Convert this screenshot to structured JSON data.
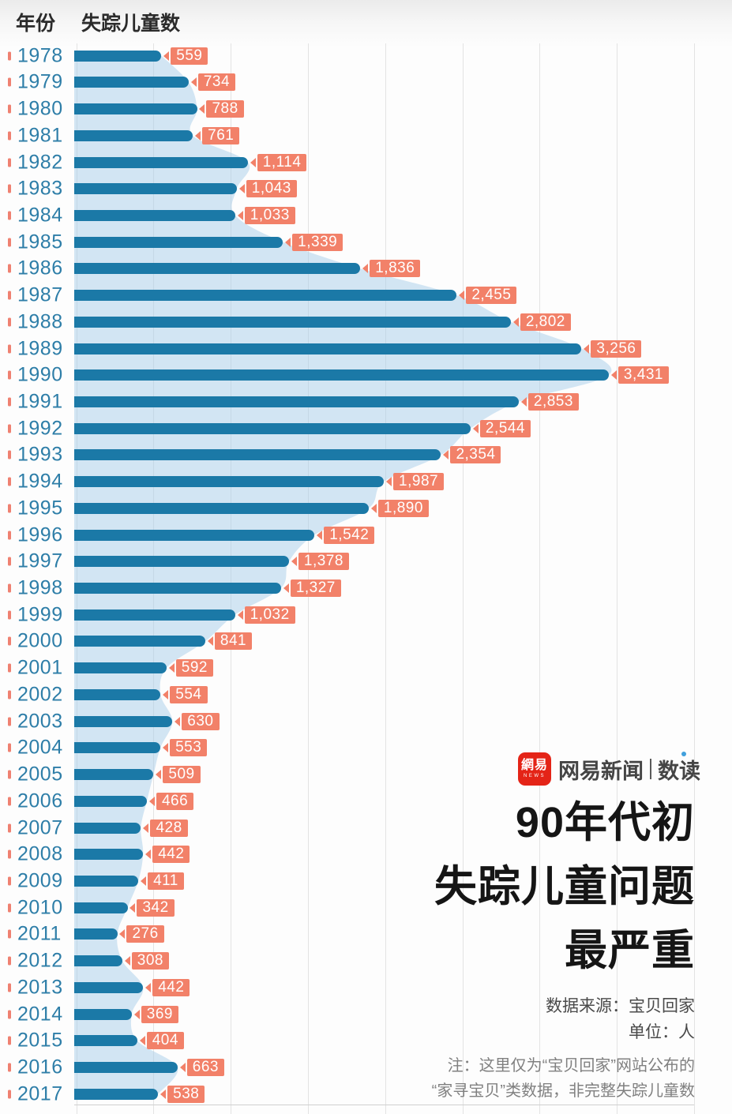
{
  "header": {
    "year_col": "年份",
    "count_col": "失踪儿童数"
  },
  "chart_data": {
    "type": "bar",
    "orientation": "horizontal",
    "title": "90年代初失踪儿童问题最严重",
    "xlabel": "失踪儿童数",
    "ylabel": "年份",
    "xlim": [
      0,
      4000
    ],
    "gridline_interval": 500,
    "grid": true,
    "categories": [
      "1978",
      "1979",
      "1980",
      "1981",
      "1982",
      "1983",
      "1984",
      "1985",
      "1986",
      "1987",
      "1988",
      "1989",
      "1990",
      "1991",
      "1992",
      "1993",
      "1994",
      "1995",
      "1996",
      "1997",
      "1998",
      "1999",
      "2000",
      "2001",
      "2002",
      "2003",
      "2004",
      "2005",
      "2006",
      "2007",
      "2008",
      "2009",
      "2010",
      "2011",
      "2012",
      "2013",
      "2014",
      "2015",
      "2016",
      "2017"
    ],
    "values": [
      559,
      734,
      788,
      761,
      1114,
      1043,
      1033,
      1339,
      1836,
      2455,
      2802,
      3256,
      3431,
      2853,
      2544,
      2354,
      1987,
      1890,
      1542,
      1378,
      1327,
      1032,
      841,
      592,
      554,
      630,
      553,
      509,
      466,
      428,
      442,
      411,
      342,
      276,
      308,
      442,
      369,
      404,
      663,
      538
    ],
    "value_labels": [
      "559",
      "734",
      "788",
      "761",
      "1,114",
      "1,043",
      "1,033",
      "1,339",
      "1,836",
      "2,455",
      "2,802",
      "3,256",
      "3,431",
      "2,853",
      "2,544",
      "2,354",
      "1,987",
      "1,890",
      "1,542",
      "1,378",
      "1,327",
      "1,032",
      "841",
      "592",
      "554",
      "630",
      "553",
      "509",
      "466",
      "428",
      "442",
      "411",
      "342",
      "276",
      "308",
      "442",
      "369",
      "404",
      "663",
      "538"
    ],
    "colors": {
      "bar": "#1b79a7",
      "area_fill": "#d9e9f4",
      "value_label_bg": "#f28169",
      "year_text": "#2e7ea8",
      "year_tick": "#ef8171",
      "gridline": "#e3e3e3"
    }
  },
  "branding": {
    "logo_text": "網易",
    "logo_sub": "NEWS",
    "brand_name": "网易新闻",
    "brand_product": "数读",
    "logo_color": "#e42417"
  },
  "title": {
    "line1": "90年代初",
    "line2": "失踪儿童问题",
    "line3": "最严重"
  },
  "source": {
    "origin": "数据来源：宝贝回家",
    "unit": "单位：人"
  },
  "note": {
    "line1": "注：这里仅为“宝贝回家”网站公布的",
    "line2": "“家寻宝贝”类数据，非完整失踪儿童数"
  }
}
